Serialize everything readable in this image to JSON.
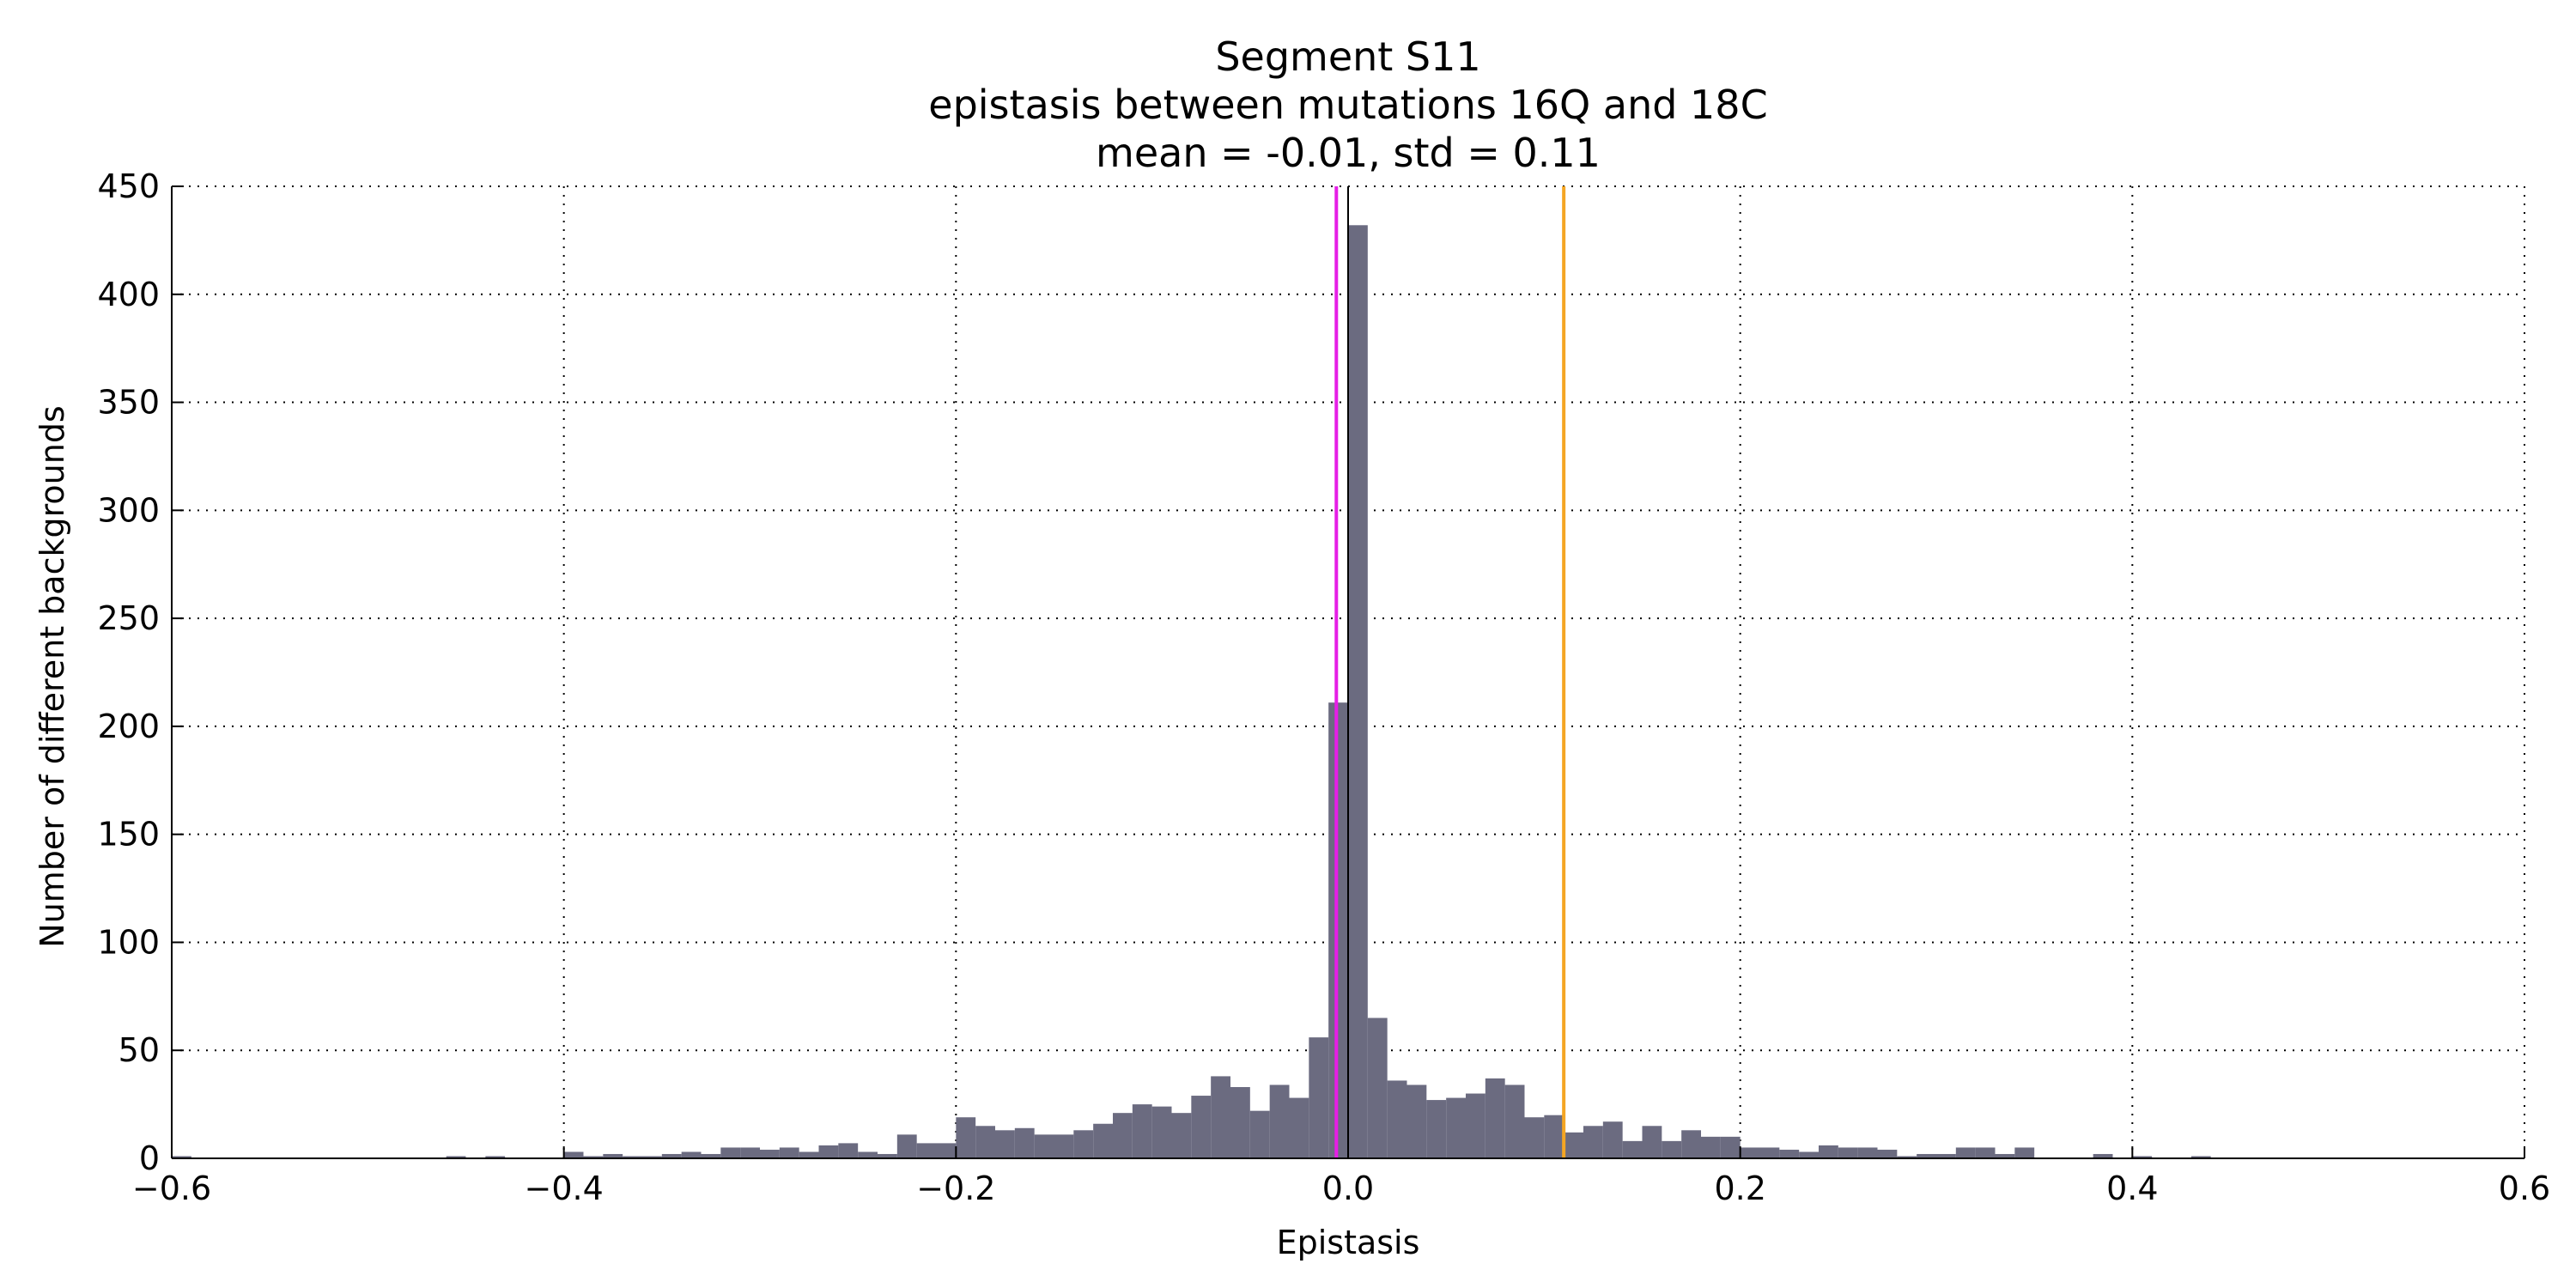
{
  "chart_data": {
    "type": "bar",
    "title_lines": [
      "Segment S11",
      "epistasis between mutations 16Q and 18C",
      "mean = -0.01, std = 0.11"
    ],
    "xlabel": "Epistasis",
    "ylabel": "Number of different backgrounds",
    "xlim": [
      -0.6,
      0.6
    ],
    "ylim": [
      0,
      450
    ],
    "xticks": [
      -0.6,
      -0.4,
      -0.2,
      0.0,
      0.2,
      0.4,
      0.6
    ],
    "xtick_labels": [
      "−0.6",
      "−0.4",
      "−0.2",
      "0.0",
      "0.2",
      "0.4",
      "0.6"
    ],
    "yticks": [
      0,
      50,
      100,
      150,
      200,
      250,
      300,
      350,
      400,
      450
    ],
    "ytick_labels": [
      "0",
      "50",
      "100",
      "150",
      "200",
      "250",
      "300",
      "350",
      "400",
      "450"
    ],
    "grid": true,
    "bar_color": "#6b6b80",
    "bin_width": 0.01,
    "bins": [
      {
        "x0": -0.6,
        "count": 1
      },
      {
        "x0": -0.59,
        "count": 0
      },
      {
        "x0": -0.58,
        "count": 0
      },
      {
        "x0": -0.57,
        "count": 0
      },
      {
        "x0": -0.56,
        "count": 0
      },
      {
        "x0": -0.55,
        "count": 0
      },
      {
        "x0": -0.54,
        "count": 0
      },
      {
        "x0": -0.53,
        "count": 0
      },
      {
        "x0": -0.52,
        "count": 0
      },
      {
        "x0": -0.51,
        "count": 0
      },
      {
        "x0": -0.5,
        "count": 0
      },
      {
        "x0": -0.49,
        "count": 0
      },
      {
        "x0": -0.48,
        "count": 0
      },
      {
        "x0": -0.47,
        "count": 0
      },
      {
        "x0": -0.46,
        "count": 1
      },
      {
        "x0": -0.45,
        "count": 0
      },
      {
        "x0": -0.44,
        "count": 1
      },
      {
        "x0": -0.43,
        "count": 0
      },
      {
        "x0": -0.42,
        "count": 0
      },
      {
        "x0": -0.41,
        "count": 0
      },
      {
        "x0": -0.4,
        "count": 3
      },
      {
        "x0": -0.39,
        "count": 1
      },
      {
        "x0": -0.38,
        "count": 2
      },
      {
        "x0": -0.37,
        "count": 1
      },
      {
        "x0": -0.36,
        "count": 1
      },
      {
        "x0": -0.35,
        "count": 2
      },
      {
        "x0": -0.34,
        "count": 3
      },
      {
        "x0": -0.33,
        "count": 2
      },
      {
        "x0": -0.32,
        "count": 5
      },
      {
        "x0": -0.31,
        "count": 5
      },
      {
        "x0": -0.3,
        "count": 4
      },
      {
        "x0": -0.29,
        "count": 5
      },
      {
        "x0": -0.28,
        "count": 3
      },
      {
        "x0": -0.27,
        "count": 6
      },
      {
        "x0": -0.26,
        "count": 7
      },
      {
        "x0": -0.25,
        "count": 3
      },
      {
        "x0": -0.24,
        "count": 2
      },
      {
        "x0": -0.23,
        "count": 11
      },
      {
        "x0": -0.22,
        "count": 7
      },
      {
        "x0": -0.21,
        "count": 7
      },
      {
        "x0": -0.2,
        "count": 19
      },
      {
        "x0": -0.19,
        "count": 15
      },
      {
        "x0": -0.18,
        "count": 13
      },
      {
        "x0": -0.17,
        "count": 14
      },
      {
        "x0": -0.16,
        "count": 11
      },
      {
        "x0": -0.15,
        "count": 11
      },
      {
        "x0": -0.14,
        "count": 13
      },
      {
        "x0": -0.13,
        "count": 16
      },
      {
        "x0": -0.12,
        "count": 21
      },
      {
        "x0": -0.11,
        "count": 25
      },
      {
        "x0": -0.1,
        "count": 24
      },
      {
        "x0": -0.09,
        "count": 21
      },
      {
        "x0": -0.08,
        "count": 29
      },
      {
        "x0": -0.07,
        "count": 38
      },
      {
        "x0": -0.06,
        "count": 33
      },
      {
        "x0": -0.05,
        "count": 22
      },
      {
        "x0": -0.04,
        "count": 34
      },
      {
        "x0": -0.03,
        "count": 28
      },
      {
        "x0": -0.02,
        "count": 56
      },
      {
        "x0": -0.01,
        "count": 211
      },
      {
        "x0": 0.0,
        "count": 432
      },
      {
        "x0": 0.01,
        "count": 65
      },
      {
        "x0": 0.02,
        "count": 36
      },
      {
        "x0": 0.03,
        "count": 34
      },
      {
        "x0": 0.04,
        "count": 27
      },
      {
        "x0": 0.05,
        "count": 28
      },
      {
        "x0": 0.06,
        "count": 30
      },
      {
        "x0": 0.07,
        "count": 37
      },
      {
        "x0": 0.08,
        "count": 34
      },
      {
        "x0": 0.09,
        "count": 19
      },
      {
        "x0": 0.1,
        "count": 20
      },
      {
        "x0": 0.11,
        "count": 12
      },
      {
        "x0": 0.12,
        "count": 15
      },
      {
        "x0": 0.13,
        "count": 17
      },
      {
        "x0": 0.14,
        "count": 8
      },
      {
        "x0": 0.15,
        "count": 15
      },
      {
        "x0": 0.16,
        "count": 8
      },
      {
        "x0": 0.17,
        "count": 13
      },
      {
        "x0": 0.18,
        "count": 10
      },
      {
        "x0": 0.19,
        "count": 10
      },
      {
        "x0": 0.2,
        "count": 5
      },
      {
        "x0": 0.21,
        "count": 5
      },
      {
        "x0": 0.22,
        "count": 4
      },
      {
        "x0": 0.23,
        "count": 3
      },
      {
        "x0": 0.24,
        "count": 6
      },
      {
        "x0": 0.25,
        "count": 5
      },
      {
        "x0": 0.26,
        "count": 5
      },
      {
        "x0": 0.27,
        "count": 4
      },
      {
        "x0": 0.28,
        "count": 1
      },
      {
        "x0": 0.29,
        "count": 2
      },
      {
        "x0": 0.3,
        "count": 2
      },
      {
        "x0": 0.31,
        "count": 5
      },
      {
        "x0": 0.32,
        "count": 5
      },
      {
        "x0": 0.33,
        "count": 2
      },
      {
        "x0": 0.34,
        "count": 5
      },
      {
        "x0": 0.35,
        "count": 0
      },
      {
        "x0": 0.36,
        "count": 0
      },
      {
        "x0": 0.37,
        "count": 0
      },
      {
        "x0": 0.38,
        "count": 2
      },
      {
        "x0": 0.39,
        "count": 0
      },
      {
        "x0": 0.4,
        "count": 1
      },
      {
        "x0": 0.41,
        "count": 0
      },
      {
        "x0": 0.42,
        "count": 0
      },
      {
        "x0": 0.43,
        "count": 1
      },
      {
        "x0": 0.44,
        "count": 0
      },
      {
        "x0": 0.45,
        "count": 0
      },
      {
        "x0": 0.46,
        "count": 0
      },
      {
        "x0": 0.47,
        "count": 0
      },
      {
        "x0": 0.48,
        "count": 0
      },
      {
        "x0": 0.49,
        "count": 0
      },
      {
        "x0": 0.5,
        "count": 0
      },
      {
        "x0": 0.51,
        "count": 0
      },
      {
        "x0": 0.52,
        "count": 0
      },
      {
        "x0": 0.53,
        "count": 0
      },
      {
        "x0": 0.54,
        "count": 0
      },
      {
        "x0": 0.55,
        "count": 0
      },
      {
        "x0": 0.56,
        "count": 0
      },
      {
        "x0": 0.57,
        "count": 0
      },
      {
        "x0": 0.58,
        "count": 0
      },
      {
        "x0": 0.59,
        "count": 0
      }
    ],
    "reference_lines": [
      {
        "x": -0.006,
        "color": "#e61ee6"
      },
      {
        "x": 0.0,
        "color": "#000000"
      },
      {
        "x": 0.11,
        "color": "#f5a623"
      }
    ]
  }
}
